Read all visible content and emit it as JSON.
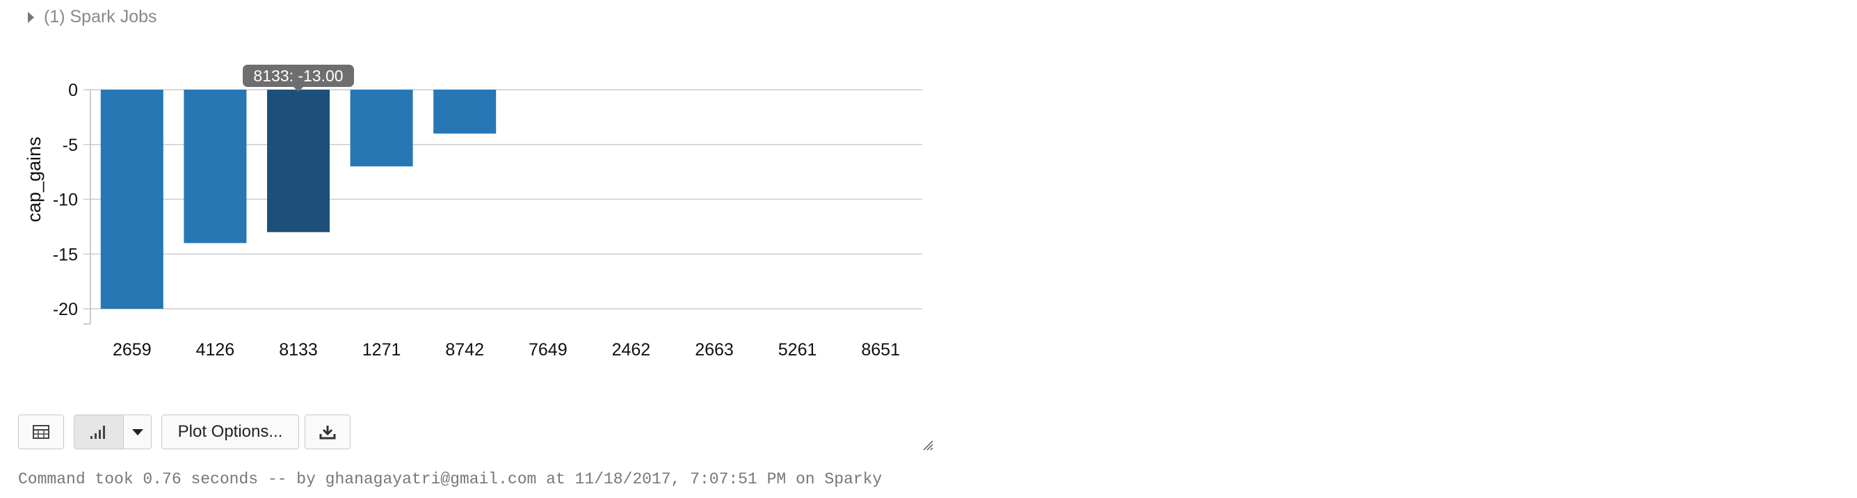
{
  "spark_jobs": {
    "label": "(1) Spark Jobs"
  },
  "tooltip": {
    "text": "8133: -13.00"
  },
  "chart_data": {
    "type": "bar",
    "categories": [
      "2659",
      "4126",
      "8133",
      "1271",
      "8742",
      "7649",
      "2462",
      "2663",
      "5261",
      "8651"
    ],
    "values": [
      -20,
      -14,
      -13,
      -7,
      -4,
      0,
      0,
      0,
      0,
      0
    ],
    "ylabel": "cap_gains",
    "xlabel": "",
    "ylim": [
      -21,
      0
    ],
    "yticks": [
      0,
      -5,
      -10,
      -15,
      -20
    ],
    "highlighted_index": 2,
    "grid": true,
    "colors": {
      "bar": "#2677b4",
      "bar_highlight": "#1c4f7a",
      "grid": "#cccccc",
      "tooltip_bg": "#6e6e6e"
    }
  },
  "toolbar": {
    "table_icon": "table-icon",
    "chart_icon": "bar-chart-icon",
    "dropdown_icon": "chevron-down-icon",
    "plot_options_label": "Plot Options...",
    "download_icon": "download-icon"
  },
  "status": {
    "text": "Command took 0.76 seconds -- by ghanagayatri@gmail.com at 11/18/2017, 7:07:51 PM on Sparky"
  }
}
